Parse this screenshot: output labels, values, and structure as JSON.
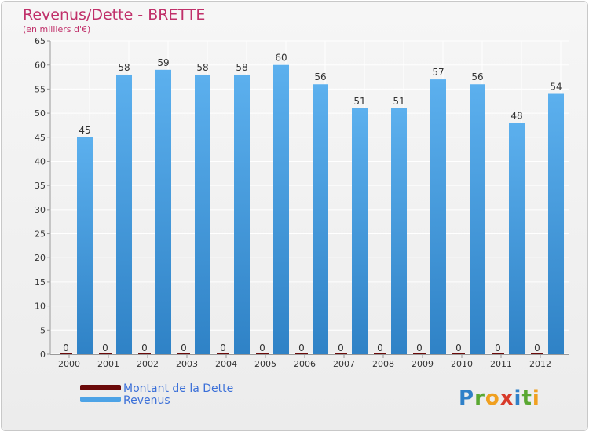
{
  "chart_data": {
    "type": "bar",
    "title": "Revenus/Dette - BRETTE",
    "subtitle": "(en milliers d'€)",
    "categories": [
      "2000",
      "2001",
      "2002",
      "2003",
      "2004",
      "2005",
      "2006",
      "2007",
      "2008",
      "2009",
      "2010",
      "2011",
      "2012"
    ],
    "series": [
      {
        "name": "Montant de la Dette",
        "color": "#6b0a0a",
        "values": [
          0,
          0,
          0,
          0,
          0,
          0,
          0,
          0,
          0,
          0,
          0,
          0,
          0
        ]
      },
      {
        "name": "Revenus",
        "color": "#4da3e6",
        "values": [
          45,
          58,
          59,
          58,
          58,
          60,
          56,
          51,
          51,
          57,
          56,
          48,
          54
        ]
      }
    ],
    "ylim": [
      0,
      65
    ],
    "yticks": [
      0,
      5,
      10,
      15,
      20,
      25,
      30,
      35,
      40,
      45,
      50,
      55,
      60,
      65
    ],
    "grid": true,
    "legend_position": "bottom-left"
  },
  "logo": {
    "text": "Proxiti",
    "letters": [
      {
        "ch": "P",
        "color": "#2f80c8"
      },
      {
        "ch": "r",
        "color": "#5aa832"
      },
      {
        "ch": "o",
        "color": "#f0a020"
      },
      {
        "ch": "x",
        "color": "#d83a2a"
      },
      {
        "ch": "i",
        "color": "#2f80c8"
      },
      {
        "ch": "t",
        "color": "#5aa832"
      },
      {
        "ch": "i",
        "color": "#f0a020"
      }
    ]
  }
}
